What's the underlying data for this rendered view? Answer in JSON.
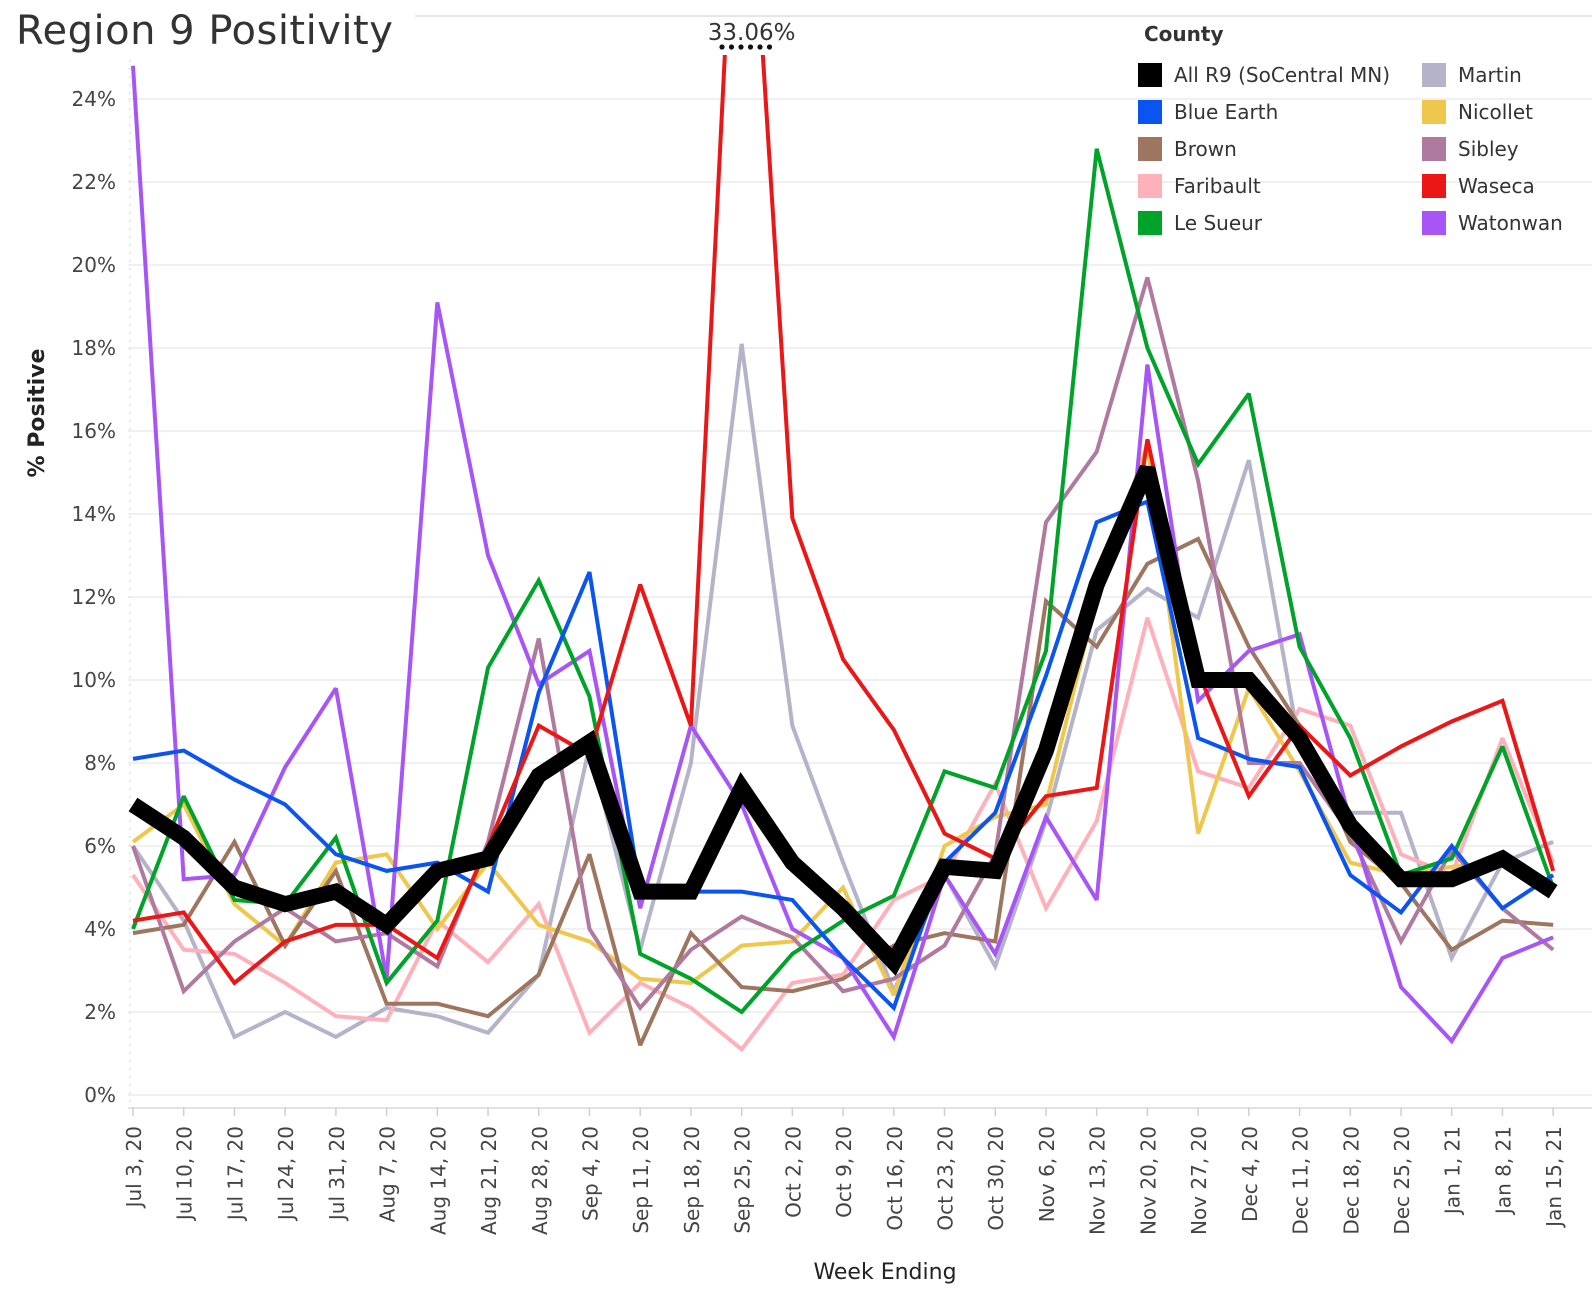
{
  "title": "Region 9 Positivity",
  "chart_data": {
    "type": "line",
    "title": "Region 9 Positivity",
    "xlabel": "Week Ending",
    "ylabel": "% Positive",
    "ylim": [
      0,
      24.8
    ],
    "yticks": [
      0,
      2,
      4,
      6,
      8,
      10,
      12,
      14,
      16,
      18,
      20,
      22,
      24
    ],
    "ytick_labels": [
      "0%",
      "2%",
      "4%",
      "6%",
      "8%",
      "10%",
      "12%",
      "14%",
      "16%",
      "18%",
      "20%",
      "22%",
      "24%"
    ],
    "categories": [
      "Jul 3, 20",
      "Jul 10, 20",
      "Jul 17, 20",
      "Jul 24, 20",
      "Jul 31, 20",
      "Aug 7, 20",
      "Aug 14, 20",
      "Aug 21, 20",
      "Aug 28, 20",
      "Sep 4, 20",
      "Sep 11, 20",
      "Sep 18, 20",
      "Sep 25, 20",
      "Oct 2, 20",
      "Oct 9, 20",
      "Oct 16, 20",
      "Oct 23, 20",
      "Oct 30, 20",
      "Nov 6, 20",
      "Nov 13, 20",
      "Nov 20, 20",
      "Nov 27, 20",
      "Dec 4, 20",
      "Dec 11, 20",
      "Dec 18, 20",
      "Dec 25, 20",
      "Jan 1, 21",
      "Jan 8, 21",
      "Jan 15, 21"
    ],
    "annotation": {
      "text": "33.06%",
      "series": "Waseca",
      "category": "Sep 25, 20"
    },
    "legend_title": "County",
    "legend_position": "top-right",
    "series": [
      {
        "name": "Martin",
        "color": "#b4b3c9",
        "width": 4,
        "values": [
          6.0,
          4.2,
          1.4,
          2.0,
          1.4,
          2.1,
          1.9,
          1.5,
          2.9,
          8.4,
          3.5,
          8.0,
          18.1,
          8.9,
          5.6,
          2.5,
          5.3,
          3.1,
          6.6,
          11.2,
          12.2,
          11.5,
          15.3,
          8.4,
          6.8,
          6.8,
          3.3,
          5.6,
          6.1
        ]
      },
      {
        "name": "Faribault",
        "color": "#ffb1bb",
        "width": 4,
        "values": [
          5.3,
          3.5,
          3.4,
          2.7,
          1.9,
          1.8,
          4.2,
          3.2,
          4.6,
          1.5,
          2.7,
          2.1,
          1.1,
          2.7,
          2.9,
          4.7,
          5.3,
          7.5,
          4.5,
          6.6,
          11.5,
          7.8,
          7.4,
          9.3,
          8.9,
          5.8,
          5.3,
          8.6,
          5.6
        ]
      },
      {
        "name": "Nicollet",
        "color": "#efc74c",
        "width": 4,
        "values": [
          6.1,
          7.0,
          4.6,
          3.6,
          5.6,
          5.8,
          4.0,
          5.6,
          4.1,
          3.7,
          2.8,
          2.7,
          3.6,
          3.7,
          5.0,
          2.4,
          6.0,
          6.7,
          7.0,
          12.0,
          15.7,
          6.3,
          9.8,
          7.8,
          5.6,
          5.3,
          5.5,
          5.6,
          5.0
        ]
      },
      {
        "name": "Brown",
        "color": "#9e7660",
        "width": 4,
        "values": [
          3.9,
          4.1,
          6.1,
          3.6,
          5.4,
          2.2,
          2.2,
          1.9,
          2.9,
          5.8,
          1.2,
          3.9,
          2.6,
          2.5,
          2.8,
          3.6,
          3.9,
          3.7,
          11.9,
          10.8,
          12.8,
          13.4,
          10.8,
          8.9,
          6.1,
          5.1,
          3.5,
          4.2,
          4.1
        ]
      },
      {
        "name": "Sibley",
        "color": "#b07a9f",
        "width": 4,
        "values": [
          6.0,
          2.5,
          3.7,
          4.5,
          3.7,
          3.9,
          3.1,
          6.1,
          11.0,
          4.0,
          2.1,
          3.5,
          4.3,
          3.8,
          2.5,
          2.8,
          3.6,
          5.8,
          13.8,
          15.5,
          19.7,
          14.8,
          8.0,
          8.0,
          6.3,
          3.7,
          5.9,
          4.5,
          3.5
        ]
      },
      {
        "name": "Watonwan",
        "color": "#a855f7",
        "width": 4,
        "values": [
          24.8,
          5.2,
          5.3,
          7.9,
          9.8,
          2.8,
          19.1,
          13.0,
          9.9,
          10.7,
          4.5,
          8.9,
          7.0,
          4.0,
          3.3,
          1.4,
          5.3,
          3.4,
          6.7,
          4.7,
          17.6,
          9.5,
          10.7,
          11.1,
          6.6,
          2.6,
          1.3,
          3.3,
          3.8
        ]
      },
      {
        "name": "Le Sueur",
        "color": "#00a32a",
        "width": 4,
        "values": [
          4.0,
          7.2,
          4.7,
          4.6,
          6.2,
          2.7,
          4.2,
          10.3,
          12.4,
          9.6,
          3.4,
          2.8,
          2.0,
          3.4,
          4.2,
          4.8,
          7.8,
          7.4,
          10.7,
          22.8,
          18.0,
          15.2,
          16.9,
          10.8,
          8.6,
          5.3,
          5.7,
          8.4,
          5.0
        ]
      },
      {
        "name": "Blue Earth",
        "color": "#0a54f0",
        "width": 4,
        "values": [
          8.1,
          8.3,
          7.6,
          7.0,
          5.8,
          5.4,
          5.6,
          4.9,
          9.7,
          12.6,
          4.9,
          4.9,
          4.9,
          4.7,
          3.3,
          2.1,
          5.6,
          6.8,
          10.1,
          13.8,
          14.3,
          8.6,
          8.1,
          7.9,
          5.3,
          4.4,
          6.0,
          4.5,
          5.3
        ]
      },
      {
        "name": "Waseca",
        "color": "#eb1717",
        "width": 4,
        "values": [
          4.2,
          4.4,
          2.7,
          3.7,
          4.1,
          4.1,
          3.3,
          6.0,
          8.9,
          8.2,
          12.3,
          8.9,
          33.06,
          13.9,
          10.5,
          8.8,
          6.3,
          5.7,
          7.2,
          7.4,
          15.8,
          10.2,
          7.2,
          8.9,
          7.7,
          8.4,
          9.0,
          9.5,
          5.4
        ]
      },
      {
        "name": "All R9 (SoCentral MN)",
        "color": "#000000",
        "width": 16,
        "values": [
          7.0,
          6.2,
          5.0,
          4.6,
          4.9,
          4.1,
          5.4,
          5.7,
          7.7,
          8.5,
          4.9,
          4.9,
          7.4,
          5.6,
          4.5,
          3.2,
          5.5,
          5.4,
          8.3,
          12.3,
          15.1,
          10.0,
          10.0,
          8.6,
          6.5,
          5.2,
          5.2,
          5.7,
          4.9
        ]
      }
    ]
  },
  "legend": {
    "title": "County",
    "columns": [
      [
        {
          "label": "All R9 (SoCentral MN)",
          "color": "#000000"
        },
        {
          "label": "Blue Earth",
          "color": "#0a54f0"
        },
        {
          "label": "Brown",
          "color": "#9e7660"
        },
        {
          "label": "Faribault",
          "color": "#ffb1bb"
        },
        {
          "label": "Le Sueur",
          "color": "#00a32a"
        }
      ],
      [
        {
          "label": "Martin",
          "color": "#b4b3c9"
        },
        {
          "label": "Nicollet",
          "color": "#efc74c"
        },
        {
          "label": "Sibley",
          "color": "#b07a9f"
        },
        {
          "label": "Waseca",
          "color": "#eb1717"
        },
        {
          "label": "Watonwan",
          "color": "#a855f7"
        }
      ]
    ]
  }
}
